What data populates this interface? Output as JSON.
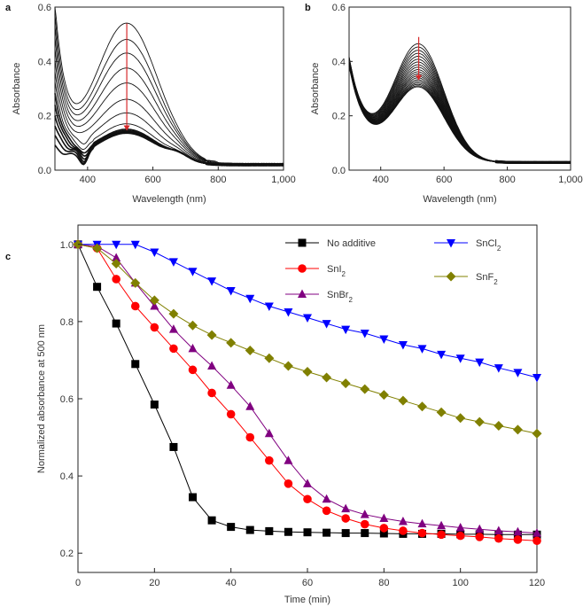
{
  "chart_data": [
    {
      "panel": "a",
      "type": "line",
      "title": "",
      "xlabel": "Wavelength (nm)",
      "ylabel": "Absorbance",
      "xlim": [
        300,
        1000
      ],
      "ylim": [
        0,
        0.6
      ],
      "xticks": [
        400,
        600,
        800,
        1000
      ],
      "xtick_labels": [
        "400",
        "600",
        "800",
        "1,000"
      ],
      "yticks": [
        0.0,
        0.2,
        0.4,
        0.6
      ],
      "ytick_labels": [
        "0.0",
        "0.2",
        "0.4",
        "0.6"
      ],
      "arrow_color": "#d62728",
      "arrow": {
        "x": 520,
        "from": 0.54,
        "to": 0.145
      },
      "peak_wavelength_nm": 520,
      "curve_peaks": [
        0.54,
        0.48,
        0.43,
        0.375,
        0.32,
        0.26,
        0.21,
        0.17,
        0.15,
        0.145,
        0.142,
        0.14,
        0.138,
        0.136
      ]
    },
    {
      "panel": "b",
      "type": "line",
      "title": "",
      "xlabel": "Wavelength (nm)",
      "ylabel": "Absorbance",
      "xlim": [
        300,
        1000
      ],
      "ylim": [
        0,
        0.6
      ],
      "xticks": [
        400,
        600,
        800,
        1000
      ],
      "xtick_labels": [
        "400",
        "600",
        "800",
        "1,000"
      ],
      "yticks": [
        0.0,
        0.2,
        0.4,
        0.6
      ],
      "ytick_labels": [
        "0.0",
        "0.2",
        "0.4",
        "0.6"
      ],
      "arrow_color": "#d62728",
      "arrow": {
        "x": 520,
        "from": 0.49,
        "to": 0.33
      },
      "peak_wavelength_nm": 520,
      "curve_peaks": [
        0.49,
        0.478,
        0.466,
        0.455,
        0.444,
        0.433,
        0.423,
        0.413,
        0.404,
        0.395,
        0.387,
        0.379,
        0.372,
        0.365,
        0.358,
        0.352,
        0.346,
        0.341,
        0.336,
        0.332
      ]
    },
    {
      "panel": "c",
      "type": "line",
      "title": "",
      "xlabel": "Time (min)",
      "ylabel": "Normalized absorbance at 500 nm",
      "xlim": [
        0,
        120
      ],
      "ylim": [
        0.15,
        1.05
      ],
      "xticks": [
        0,
        20,
        40,
        60,
        80,
        100,
        120
      ],
      "yticks": [
        0.2,
        0.4,
        0.6,
        0.8,
        1.0
      ],
      "x": [
        0,
        5,
        10,
        15,
        20,
        25,
        30,
        35,
        40,
        45,
        50,
        55,
        60,
        65,
        70,
        75,
        80,
        85,
        90,
        95,
        100,
        105,
        110,
        115,
        120
      ],
      "series": [
        {
          "name": "No additive",
          "sub": "",
          "color": "#000000",
          "marker": "square",
          "values": [
            1.0,
            0.89,
            0.795,
            0.69,
            0.585,
            0.475,
            0.345,
            0.285,
            0.268,
            0.26,
            0.257,
            0.255,
            0.254,
            0.253,
            0.252,
            0.252,
            0.251,
            0.25,
            0.25,
            0.25,
            0.249,
            0.249,
            0.248,
            0.248,
            0.248
          ]
        },
        {
          "name": "SnI",
          "sub": "2",
          "color": "#ff0000",
          "marker": "circle",
          "values": [
            1.0,
            0.99,
            0.91,
            0.84,
            0.785,
            0.73,
            0.675,
            0.615,
            0.56,
            0.5,
            0.44,
            0.38,
            0.34,
            0.31,
            0.29,
            0.275,
            0.265,
            0.258,
            0.252,
            0.248,
            0.245,
            0.242,
            0.238,
            0.235,
            0.232
          ]
        },
        {
          "name": "SnBr",
          "sub": "2",
          "color": "#800080",
          "marker": "triangle-up",
          "values": [
            1.0,
            0.995,
            0.965,
            0.9,
            0.84,
            0.78,
            0.73,
            0.685,
            0.635,
            0.58,
            0.51,
            0.44,
            0.38,
            0.34,
            0.315,
            0.3,
            0.29,
            0.282,
            0.276,
            0.271,
            0.266,
            0.262,
            0.258,
            0.255,
            0.252
          ]
        },
        {
          "name": "SnCl",
          "sub": "2",
          "color": "#0000ff",
          "marker": "triangle-down",
          "values": [
            1.0,
            1.0,
            1.0,
            1.0,
            0.98,
            0.955,
            0.93,
            0.905,
            0.88,
            0.86,
            0.84,
            0.825,
            0.81,
            0.795,
            0.78,
            0.77,
            0.755,
            0.74,
            0.73,
            0.715,
            0.705,
            0.695,
            0.68,
            0.668,
            0.655
          ]
        },
        {
          "name": "SnF",
          "sub": "2",
          "color": "#808000",
          "marker": "diamond",
          "values": [
            1.0,
            0.99,
            0.95,
            0.9,
            0.855,
            0.82,
            0.79,
            0.765,
            0.745,
            0.725,
            0.705,
            0.685,
            0.67,
            0.655,
            0.64,
            0.625,
            0.61,
            0.595,
            0.58,
            0.565,
            0.55,
            0.54,
            0.53,
            0.52,
            0.51
          ]
        }
      ]
    }
  ]
}
